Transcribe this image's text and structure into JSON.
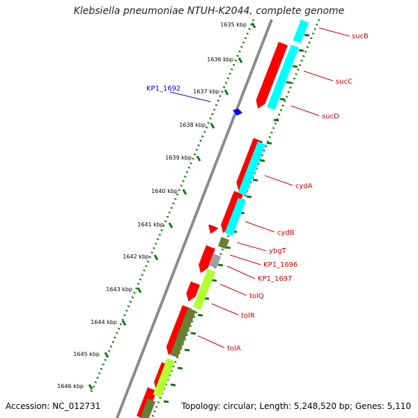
{
  "title": "Klebsiella pneumoniae NTUH-K2044, complete genome",
  "accession": "Accession: NC_012731",
  "summary": "Topology: circular; Length: 5,248,520 bp; Genes: 5,110",
  "colors": {
    "forward_gene": "#ff0000",
    "reverse_cds": "#00ffff",
    "rna_or_other": "#b3ff33",
    "dark_feature": "#667f33",
    "grey_feature": "#a0a0a0",
    "backbone": "#8a8a8a",
    "tick_green": "#117711",
    "label_red": "#cc0000",
    "label_blue": "#0000cc"
  },
  "ticks": [
    "1635 kbp",
    "1636 kbp",
    "1637 kbp",
    "1638 kbp",
    "1639 kbp",
    "1640 kbp",
    "1641 kbp",
    "1642 kbp",
    "1643 kbp",
    "1644 kbp",
    "1645 kbp",
    "1646 kbp"
  ],
  "genes": [
    {
      "name": "sucB",
      "color": "label_red"
    },
    {
      "name": "sucC",
      "color": "label_red"
    },
    {
      "name": "sucD",
      "color": "label_red"
    },
    {
      "name": "cydA",
      "color": "label_red"
    },
    {
      "name": "cydB",
      "color": "label_red"
    },
    {
      "name": "ybgT",
      "color": "label_red"
    },
    {
      "name": "KP1_1696",
      "color": "label_red"
    },
    {
      "name": "KP1_1697",
      "color": "label_red"
    },
    {
      "name": "tolQ",
      "color": "label_red"
    },
    {
      "name": "tolR",
      "color": "label_red"
    },
    {
      "name": "tolA",
      "color": "label_red"
    },
    {
      "name": "KP1_1692",
      "color": "label_blue"
    }
  ]
}
